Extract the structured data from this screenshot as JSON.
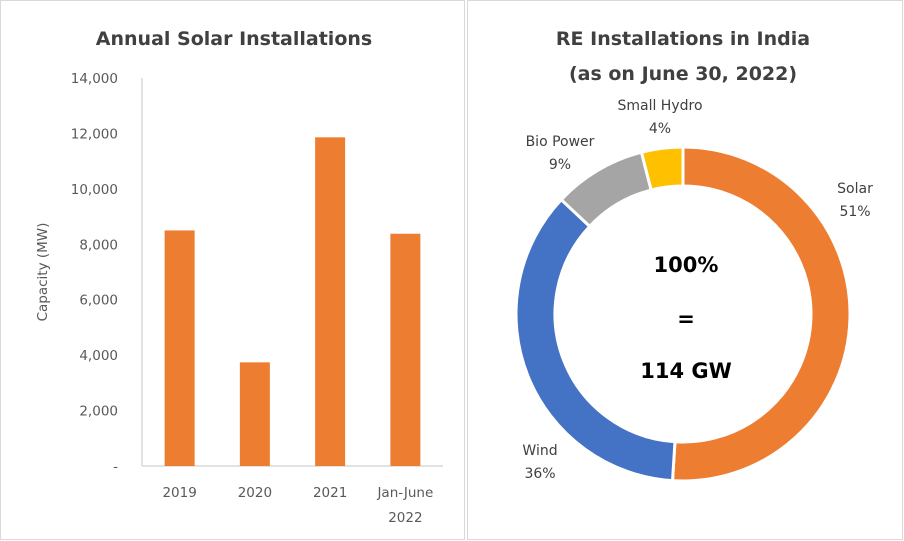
{
  "chart_data": [
    {
      "type": "bar",
      "title": "Annual Solar Installations",
      "xlabel": "",
      "ylabel": "Capacity (MW)",
      "categories": [
        "2019",
        "2020",
        "2021",
        "Jan-June 2022"
      ],
      "category_lines": [
        [
          "2019"
        ],
        [
          "2020"
        ],
        [
          "2021"
        ],
        [
          "Jan-June",
          "2022"
        ]
      ],
      "values": [
        8500,
        3740,
        11860,
        8380
      ],
      "ylim": [
        0,
        14000
      ],
      "yticks": [
        0,
        2000,
        4000,
        6000,
        8000,
        10000,
        12000,
        14000
      ],
      "ytick_labels": [
        "-",
        "2,000",
        "4,000",
        "6,000",
        "8,000",
        "10,000",
        "12,000",
        "14,000"
      ],
      "grid": false,
      "color": "#ED7D31"
    },
    {
      "type": "pie",
      "variant": "donut",
      "title_lines": [
        "RE Installations in India",
        "(as on June 30, 2022)"
      ],
      "slices": [
        {
          "label": "Solar",
          "value": 51,
          "value_label": "51%",
          "color": "#ED7D31"
        },
        {
          "label": "Wind",
          "value": 36,
          "value_label": "36%",
          "color": "#4472C4"
        },
        {
          "label": "Bio Power",
          "value": 9,
          "value_label": "9%",
          "color": "#A5A5A5"
        },
        {
          "label": "Small Hydro",
          "value": 4,
          "value_label": "4%",
          "color": "#FFC000"
        }
      ],
      "center_text": [
        "100%",
        "=",
        "114 GW"
      ],
      "legend": "none"
    }
  ]
}
